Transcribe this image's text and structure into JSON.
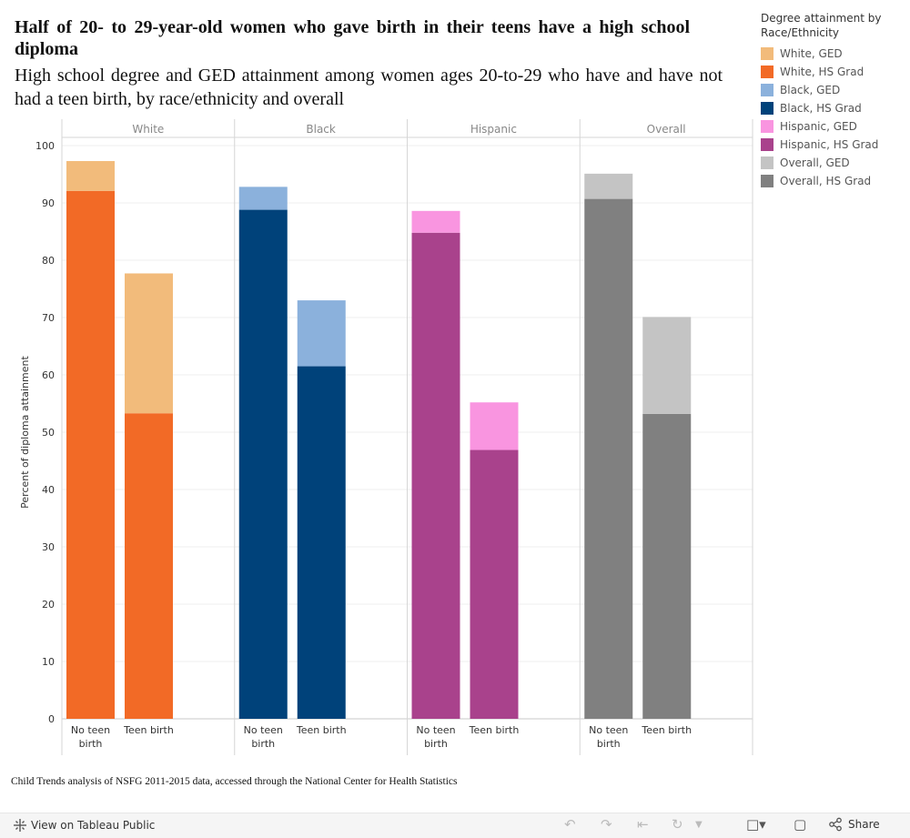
{
  "header": {
    "title": "Half of 20- to 29-year-old women who gave birth in their teens have a high school diploma",
    "subtitle": "High school degree and GED attainment among women ages 20-to-29 who have and have not had a teen birth, by race/ethnicity and overall"
  },
  "legend": {
    "title": "Degree attainment by Race/Ethnicity",
    "items": [
      {
        "label": "White, GED",
        "color": "#f2bb7b"
      },
      {
        "label": "White, HS Grad",
        "color": "#f26a26"
      },
      {
        "label": "Black, GED",
        "color": "#8bb1dc"
      },
      {
        "label": "Black, HS Grad",
        "color": "#00427a"
      },
      {
        "label": "Hispanic, GED",
        "color": "#f995e0"
      },
      {
        "label": "Hispanic, HS Grad",
        "color": "#a9428c"
      },
      {
        "label": "Overall, GED",
        "color": "#c4c4c4"
      },
      {
        "label": "Overall, HS Grad",
        "color": "#808080"
      }
    ]
  },
  "chart_data": {
    "type": "bar",
    "stacked": true,
    "ylabel": "Percent of diploma attainment",
    "ylim": [
      0,
      100
    ],
    "yticks": [
      0,
      10,
      20,
      30,
      40,
      50,
      60,
      70,
      80,
      90,
      100
    ],
    "categories": [
      "No teen birth",
      "Teen birth"
    ],
    "panels": [
      {
        "name": "White",
        "series": [
          {
            "name": "White, HS Grad",
            "color": "#f26a26",
            "values": [
              92.1,
              53.3
            ]
          },
          {
            "name": "White, GED",
            "color": "#f2bb7b",
            "values": [
              5.2,
              24.4
            ]
          }
        ]
      },
      {
        "name": "Black",
        "series": [
          {
            "name": "Black, HS Grad",
            "color": "#00427a",
            "values": [
              88.8,
              61.5
            ]
          },
          {
            "name": "Black, GED",
            "color": "#8bb1dc",
            "values": [
              4.0,
              11.5
            ]
          }
        ]
      },
      {
        "name": "Hispanic",
        "series": [
          {
            "name": "Hispanic, HS Grad",
            "color": "#a9428c",
            "values": [
              84.8,
              46.9
            ]
          },
          {
            "name": "Hispanic, GED",
            "color": "#f995e0",
            "values": [
              3.8,
              8.3
            ]
          }
        ]
      },
      {
        "name": "Overall",
        "series": [
          {
            "name": "Overall, HS Grad",
            "color": "#808080",
            "values": [
              90.7,
              53.2
            ]
          },
          {
            "name": "Overall, GED",
            "color": "#c4c4c4",
            "values": [
              4.4,
              16.9
            ]
          }
        ]
      }
    ],
    "legend_position": "right",
    "grid": true
  },
  "source": "Child Trends analysis of NSFG 2011-2015 data, accessed through the National Center for Health Statistics",
  "toolbar": {
    "view_label": "View on Tableau Public",
    "share_label": "Share"
  },
  "icons": [
    "tableau-icon",
    "undo-icon",
    "redo-icon",
    "revert-icon",
    "refresh-icon",
    "pause-icon",
    "download-icon",
    "fullscreen-icon",
    "share-icon"
  ]
}
